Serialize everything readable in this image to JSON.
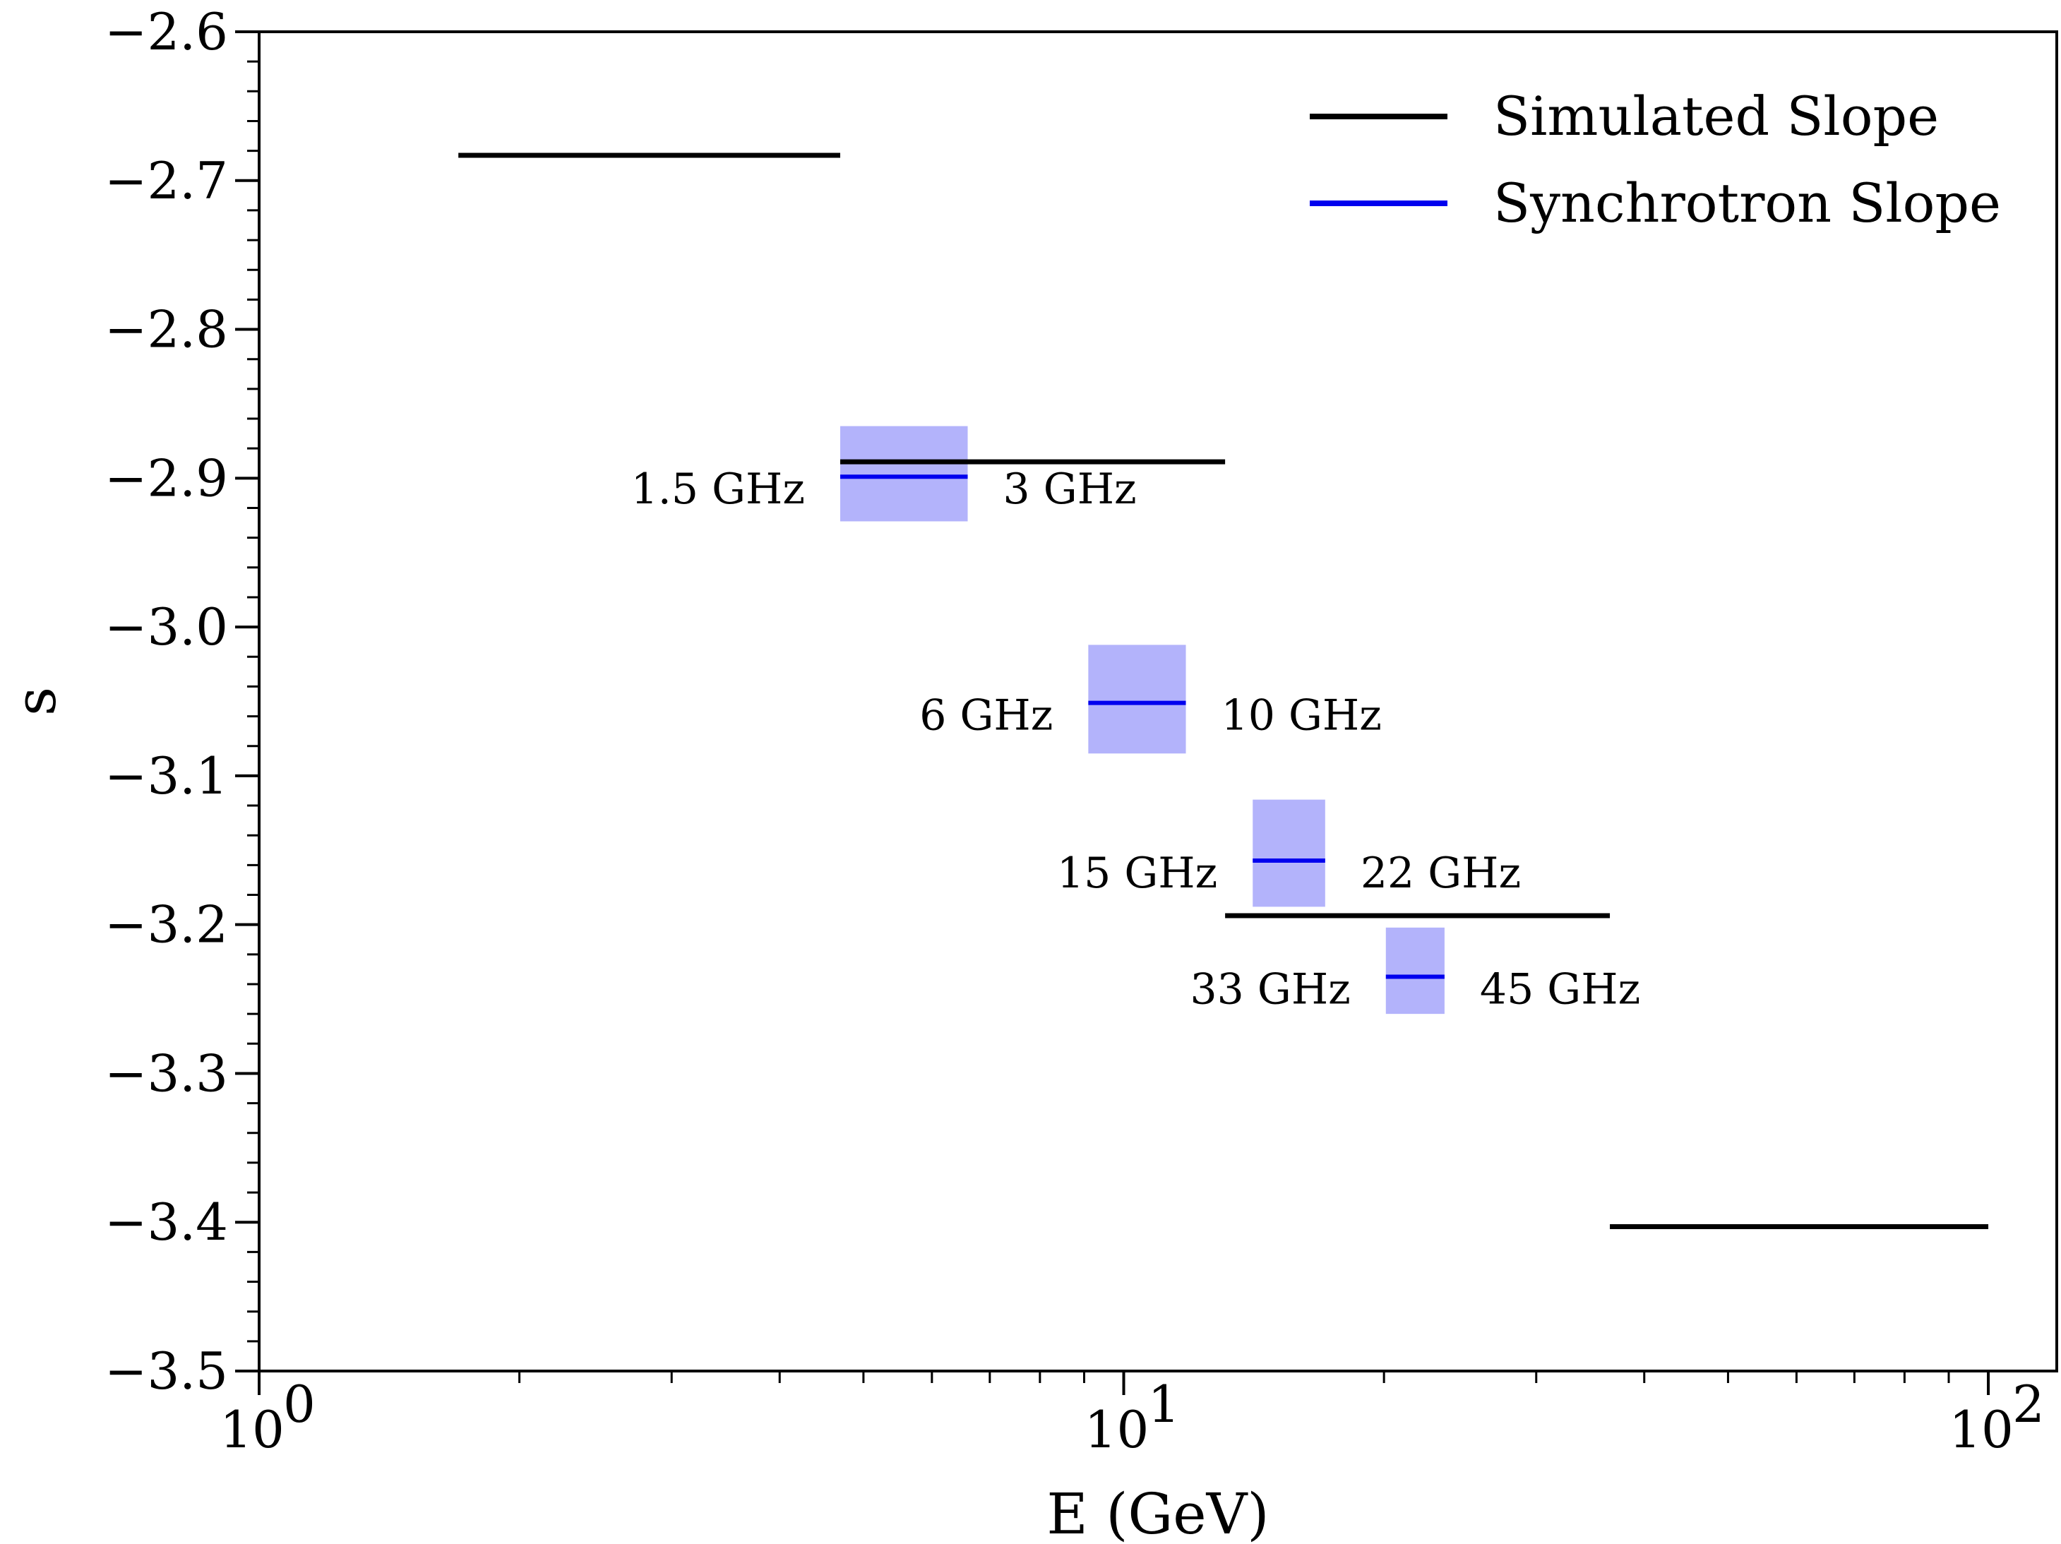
{
  "chart_data": {
    "type": "line",
    "title": "",
    "xlabel": "E (GeV)",
    "ylabel": "s",
    "xscale": "log",
    "xlim": [
      1,
      120
    ],
    "ylim": [
      -3.5,
      -2.6
    ],
    "grid": false,
    "legend_position": "top-right",
    "x_ticks": [
      {
        "value": 1,
        "label": "10",
        "exp": "0"
      },
      {
        "value": 10,
        "label": "10",
        "exp": "1"
      },
      {
        "value": 100,
        "label": "10",
        "exp": "2"
      }
    ],
    "y_ticks": [
      {
        "value": -2.6,
        "label": "−2.6"
      },
      {
        "value": -2.7,
        "label": "−2.7"
      },
      {
        "value": -2.8,
        "label": "−2.8"
      },
      {
        "value": -2.9,
        "label": "−2.9"
      },
      {
        "value": -3.0,
        "label": "−3.0"
      },
      {
        "value": -3.1,
        "label": "−3.1"
      },
      {
        "value": -3.2,
        "label": "−3.2"
      },
      {
        "value": -3.3,
        "label": "−3.3"
      },
      {
        "value": -3.4,
        "label": "−3.4"
      },
      {
        "value": -3.5,
        "label": "−3.5"
      }
    ],
    "series": [
      {
        "name": "Simulated Slope",
        "color": "#000000",
        "segments": [
          {
            "x0": 1.7,
            "x1": 4.7,
            "y": -2.683
          },
          {
            "x0": 4.7,
            "x1": 13.1,
            "y": -2.889
          },
          {
            "x0": 13.1,
            "x1": 36.5,
            "y": -3.194
          },
          {
            "x0": 36.5,
            "x1": 100,
            "y": -3.403
          }
        ]
      },
      {
        "name": "Synchrotron Slope",
        "color": "#0000ee",
        "band_color": "#b3b3fb",
        "segments": [
          {
            "x0": 4.7,
            "x1": 6.6,
            "y": -2.899,
            "ylow": -2.929,
            "yhigh": -2.865,
            "label_left": "1.5 GHz",
            "label_right": "3 GHz"
          },
          {
            "x0": 9.1,
            "x1": 11.8,
            "y": -3.051,
            "ylow": -3.085,
            "yhigh": -3.012,
            "label_left": "6 GHz",
            "label_right": "10 GHz"
          },
          {
            "x0": 14.1,
            "x1": 17.1,
            "y": -3.157,
            "ylow": -3.188,
            "yhigh": -3.116,
            "label_left": "15 GHz",
            "label_right": "22 GHz"
          },
          {
            "x0": 20.1,
            "x1": 23.5,
            "y": -3.235,
            "ylow": -3.26,
            "yhigh": -3.202,
            "label_left": "33 GHz",
            "label_right": "45 GHz"
          }
        ]
      }
    ]
  }
}
